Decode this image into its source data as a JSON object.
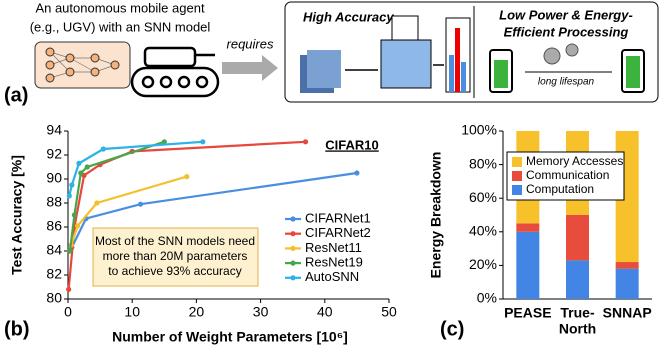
{
  "diagram": {
    "panel_label": "(a)",
    "agent_lines": [
      "An autonomous mobile agent",
      "(e.g., UGV) with an SNN model"
    ],
    "arrow_label": "requires",
    "accuracy_title": "High Accuracy",
    "power_title_lines": [
      "Low Power & Energy-",
      "Efficient Processing"
    ],
    "battery_label": "long lifespan"
  },
  "chart_data": [
    {
      "type": "line",
      "panel_label": "(b)",
      "title": "CIFAR10",
      "x_label": "Number of Weight Parameters [10⁶]",
      "y_label": "Test Accuracy [%]",
      "annotation": [
        "Most of the SNN models need",
        "more than 20M parameters",
        "to achieve 93% accuracy"
      ],
      "xlim": [
        0,
        50
      ],
      "xticks": [
        0,
        10,
        20,
        30,
        40,
        50
      ],
      "ylim": [
        80,
        94
      ],
      "yticks": [
        80,
        82,
        84,
        86,
        88,
        90,
        92,
        94
      ],
      "grid": false,
      "series": [
        {
          "name": "CIFARNet1",
          "color": "#4a8ee0",
          "x": [
            0.6,
            2.8,
            11.3,
            45
          ],
          "values": [
            84.3,
            86.7,
            87.9,
            90.5
          ]
        },
        {
          "name": "CIFARNet2",
          "color": "#e8473b",
          "x": [
            0.1,
            1,
            2.5,
            5,
            10,
            37
          ],
          "values": [
            80.8,
            86,
            90.3,
            91.2,
            92.3,
            93.1
          ]
        },
        {
          "name": "ResNet11",
          "color": "#f2c12e",
          "x": [
            0.5,
            1.5,
            4.5,
            18.5
          ],
          "values": [
            84.5,
            86.1,
            88,
            90.2
          ]
        },
        {
          "name": "ResNet19",
          "color": "#46a64a",
          "x": [
            0.3,
            1,
            2,
            3,
            15
          ],
          "values": [
            84,
            87,
            90.5,
            91,
            93.1
          ]
        },
        {
          "name": "AutoSNN",
          "color": "#2bb2e6",
          "x": [
            0.2,
            0.6,
            1.7,
            5.5,
            21
          ],
          "values": [
            88.6,
            89.5,
            91.3,
            92.5,
            93.1
          ]
        }
      ]
    },
    {
      "type": "stacked_bar",
      "panel_label": "(c)",
      "y_label": "Energy Breakdown",
      "categories": [
        [
          "PEASE"
        ],
        [
          "True-",
          "North"
        ],
        [
          "SNNAP"
        ]
      ],
      "ylim": [
        0,
        100
      ],
      "yticks": [
        {
          "value": 0,
          "label": "0%"
        },
        {
          "value": 20,
          "label": "20%"
        },
        {
          "value": 40,
          "label": "40%"
        },
        {
          "value": 60,
          "label": "60%"
        },
        {
          "value": 80,
          "label": "80%"
        },
        {
          "value": 100,
          "label": "100%"
        }
      ],
      "series": [
        {
          "name": "Computation",
          "color": "#4285e4",
          "values": [
            40,
            23,
            18
          ]
        },
        {
          "name": "Communication",
          "color": "#e84c3d",
          "values": [
            5,
            27,
            4
          ]
        },
        {
          "name": "Memory Accesses",
          "color": "#f7c12b",
          "values": [
            55,
            50,
            78
          ]
        }
      ]
    }
  ]
}
